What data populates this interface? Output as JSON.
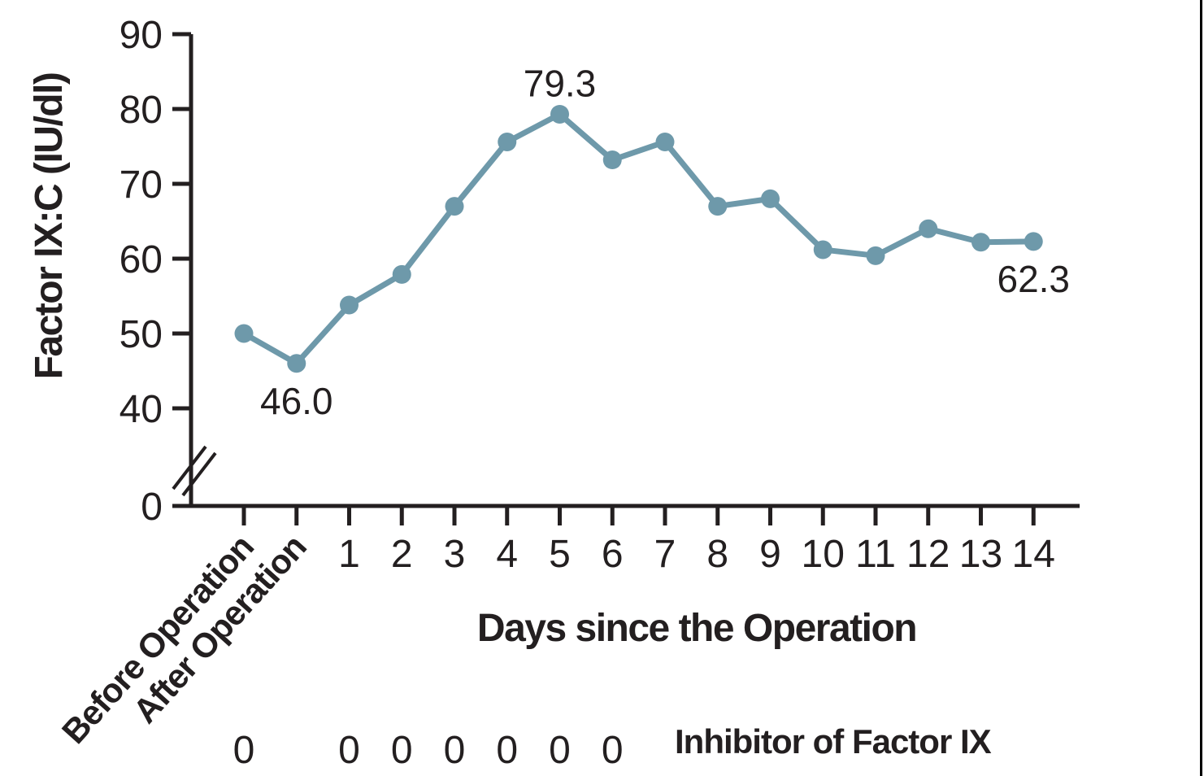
{
  "chart_data": {
    "type": "line",
    "title": "",
    "x_categories": [
      "Before Operation",
      "After Operation",
      "1",
      "2",
      "3",
      "4",
      "5",
      "6",
      "7",
      "8",
      "9",
      "10",
      "11",
      "12",
      "13",
      "14"
    ],
    "series": [
      {
        "name": "Factor IX:C (IU/dl)",
        "values": [
          50.0,
          46.0,
          53.8,
          57.9,
          67.0,
          75.6,
          79.3,
          73.2,
          75.6,
          67.0,
          68.0,
          61.2,
          60.4,
          64.0,
          62.2,
          62.3
        ]
      }
    ],
    "point_labels": [
      {
        "index": 1,
        "text": "46.0",
        "position": "below"
      },
      {
        "index": 6,
        "text": "79.3",
        "position": "above"
      },
      {
        "index": 15,
        "text": "62.3",
        "position": "below"
      }
    ],
    "xlabel": "Days since the Operation",
    "ylabel": "Factor IX:C (IU/dl)",
    "y_ticks": [
      0,
      40,
      50,
      60,
      70,
      80,
      90
    ],
    "ylim": [
      40,
      90
    ],
    "y_axis_break": true,
    "grid": false,
    "legend": false,
    "inhibitor_row": {
      "label": "Inhibitor of Factor IX",
      "value": "0",
      "at_category_indexes": [
        0,
        2,
        3,
        4,
        5,
        6,
        7
      ]
    },
    "colors": {
      "line": "#6e99aa",
      "axis": "#231f20",
      "background": "#ffffff",
      "page_border": "#000000"
    }
  }
}
